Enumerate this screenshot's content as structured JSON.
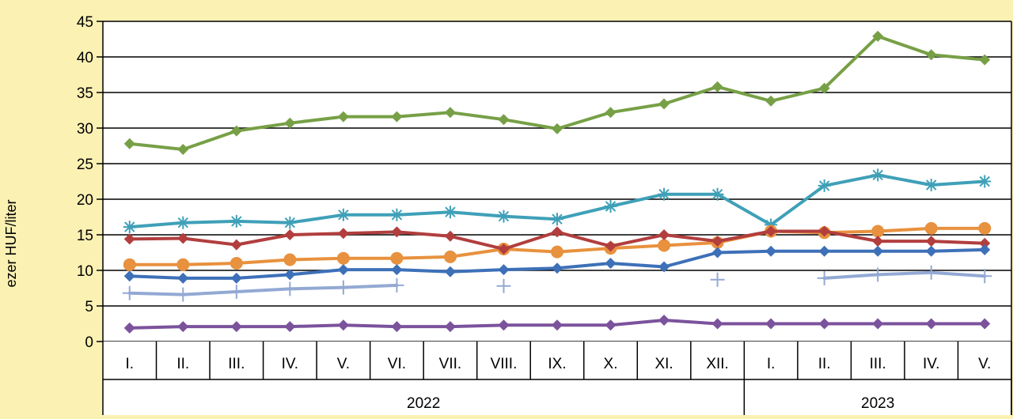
{
  "chart_data": {
    "type": "line",
    "title": "",
    "ylabel": "ezer HUF/liter",
    "xlabel": "",
    "ylim": [
      0,
      45
    ],
    "yticks": [
      0,
      5,
      10,
      15,
      20,
      25,
      30,
      35,
      40,
      45
    ],
    "grid": true,
    "legend": "none",
    "background": "#FBF1B3",
    "categories": [
      "I.",
      "II.",
      "III.",
      "IV.",
      "V.",
      "VI.",
      "VII.",
      "VIII.",
      "IX.",
      "X.",
      "XI.",
      "XII.",
      "I.",
      "II.",
      "III.",
      "IV.",
      "V."
    ],
    "years": [
      {
        "label": "2022",
        "count": 12
      },
      {
        "label": "2023",
        "count": 5
      }
    ],
    "series": [
      {
        "color": "#77A046",
        "marker": "diamond",
        "values": [
          27.8,
          27.0,
          29.6,
          30.7,
          31.6,
          31.6,
          32.2,
          31.2,
          29.9,
          32.2,
          33.4,
          35.8,
          33.8,
          35.6,
          42.9,
          40.3,
          39.6
        ]
      },
      {
        "color": "#3FA0B8",
        "marker": "asterisk",
        "values": [
          16.1,
          16.7,
          16.9,
          16.7,
          17.8,
          17.8,
          18.2,
          17.6,
          17.2,
          19.0,
          20.7,
          20.7,
          16.4,
          21.9,
          23.4,
          22.0,
          22.5
        ]
      },
      {
        "color": "#E8913E",
        "marker": "circle",
        "values": [
          10.8,
          10.8,
          11.0,
          11.5,
          11.7,
          11.7,
          11.9,
          13.0,
          12.6,
          13.1,
          13.5,
          13.9,
          15.5,
          15.3,
          15.5,
          15.9,
          15.9
        ]
      },
      {
        "color": "#B23E3E",
        "marker": "diamond",
        "values": [
          14.4,
          14.5,
          13.6,
          15.0,
          15.2,
          15.4,
          14.8,
          13.0,
          15.4,
          13.4,
          15.0,
          14.1,
          15.5,
          15.5,
          14.1,
          14.1,
          13.8
        ]
      },
      {
        "color": "#3D70B8",
        "marker": "diamond",
        "values": [
          9.2,
          8.9,
          8.9,
          9.4,
          10.1,
          10.1,
          9.8,
          10.1,
          10.3,
          11.0,
          10.5,
          12.5,
          12.7,
          12.7,
          12.7,
          12.7,
          12.9
        ]
      },
      {
        "color": "#93A9D4",
        "marker": "plus",
        "values": [
          6.8,
          6.6,
          7.0,
          7.4,
          7.6,
          7.9,
          null,
          7.8,
          null,
          null,
          null,
          8.7,
          null,
          8.9,
          9.4,
          9.7,
          9.2
        ]
      },
      {
        "color": "#7B529C",
        "marker": "diamond",
        "values": [
          1.9,
          2.1,
          2.1,
          2.1,
          2.3,
          2.1,
          2.1,
          2.3,
          2.3,
          2.3,
          3.0,
          2.5,
          2.5,
          2.5,
          2.5,
          2.5,
          2.5
        ]
      }
    ]
  }
}
